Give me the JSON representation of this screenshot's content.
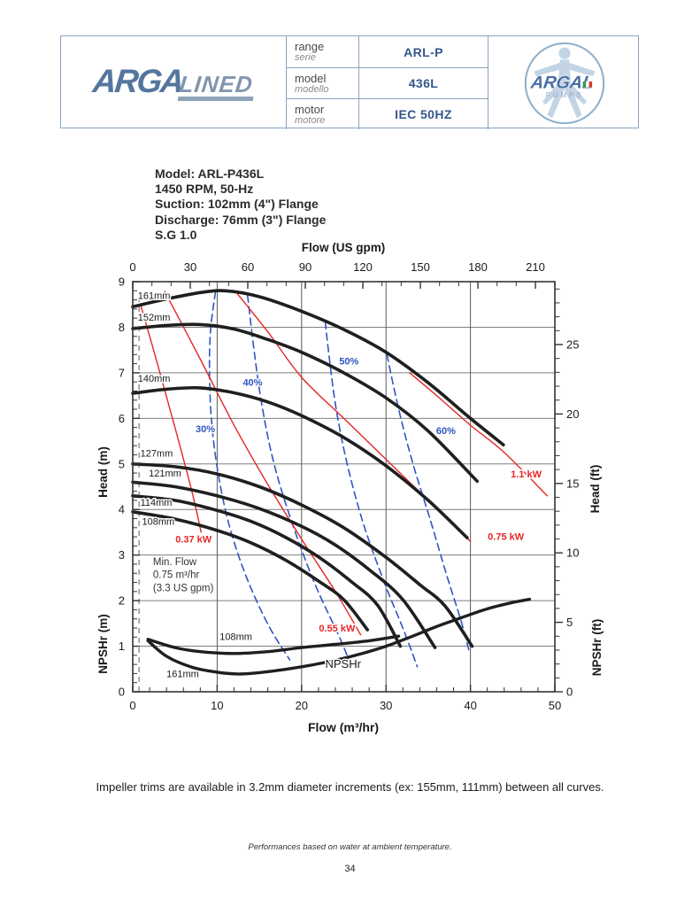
{
  "header": {
    "brand": {
      "main": "ARGA",
      "suffix": "LINED"
    },
    "rows": [
      {
        "label": "range",
        "sub": "serie",
        "value": "ARL-P"
      },
      {
        "label": "model",
        "sub": "modello",
        "value": "436L"
      },
      {
        "label": "motor",
        "sub": "motore",
        "value": "IEC 50HZ"
      }
    ],
    "badge": {
      "line1": "ARGAL",
      "line2": "PUMPS"
    }
  },
  "model_info": {
    "lines": [
      "Model: ARL-P436L",
      "1450 RPM, 50-Hz",
      "Suction: 102mm (4\") Flange",
      "Discharge: 76mm (3\") Flange",
      "S.G 1.0"
    ]
  },
  "notes": {
    "impeller": "Impeller trims are available in 3.2mm diameter increments (ex: 155mm, 111mm) between all curves.",
    "performance": "Performances based on water at ambient temperature."
  },
  "page_number": "34",
  "chart_data": {
    "type": "line",
    "title": "ARL-P436L pump performance curves, 1450 RPM 50 Hz",
    "axes": {
      "top": {
        "label": "Flow (US gpm)",
        "tick_values": [
          0,
          30,
          60,
          90,
          120,
          150,
          180,
          210
        ],
        "minor_step": 10,
        "gpm_per_m3hr": 4.4029
      },
      "bottom": {
        "label": "Flow (m³/hr)",
        "tick_values": [
          0,
          10,
          20,
          30,
          40,
          50
        ],
        "minor_step": 2,
        "max": 50
      },
      "left": {
        "label_upper": "Head (m)",
        "label_lower": "NPSHr (m)",
        "tick_values": [
          0,
          1,
          2,
          3,
          4,
          5,
          6,
          7,
          8,
          9
        ],
        "minor_step": 0.2,
        "max": 9
      },
      "right": {
        "label_upper": "Head (ft)",
        "label_lower": "NPSHr (ft)",
        "tick_values": [
          25,
          20,
          15,
          10,
          5,
          0
        ],
        "minor_step": 1,
        "ft_per_m": 3.2808
      }
    },
    "gridlines": {
      "horizontal_heads": [
        1,
        2,
        3,
        4,
        5,
        6,
        7,
        8
      ],
      "vertical_flows": [
        10,
        20,
        30,
        40
      ]
    },
    "min_flow": {
      "flow": 0.75,
      "label_lines": [
        "Min. Flow",
        "0.75 m³/hr",
        "(3.3 US gpm)"
      ],
      "label_pos": [
        2.4,
        2.78
      ]
    },
    "head_curves": [
      {
        "label": "161mm",
        "label_pos": [
          0.6,
          8.62
        ],
        "points": [
          [
            0,
            8.45
          ],
          [
            4,
            8.62
          ],
          [
            8,
            8.76
          ],
          [
            11,
            8.8
          ],
          [
            15,
            8.67
          ],
          [
            20,
            8.35
          ],
          [
            25,
            7.95
          ],
          [
            30,
            7.45
          ],
          [
            35,
            6.78
          ],
          [
            40,
            6.0
          ],
          [
            43.9,
            5.42
          ]
        ]
      },
      {
        "label": "152mm",
        "label_pos": [
          0.6,
          8.14
        ],
        "points": [
          [
            0,
            7.97
          ],
          [
            4,
            8.04
          ],
          [
            8,
            8.06
          ],
          [
            12,
            7.96
          ],
          [
            16,
            7.73
          ],
          [
            20,
            7.45
          ],
          [
            25,
            7.0
          ],
          [
            30,
            6.45
          ],
          [
            35,
            5.72
          ],
          [
            40.8,
            4.62
          ]
        ]
      },
      {
        "label": "140mm",
        "label_pos": [
          0.6,
          6.8
        ],
        "points": [
          [
            0,
            6.55
          ],
          [
            4,
            6.64
          ],
          [
            8,
            6.67
          ],
          [
            12,
            6.56
          ],
          [
            16,
            6.36
          ],
          [
            20,
            6.06
          ],
          [
            25,
            5.58
          ],
          [
            30,
            4.96
          ],
          [
            35,
            4.2
          ],
          [
            39.6,
            3.38
          ]
        ]
      },
      {
        "label": "127mm",
        "label_pos": [
          0.9,
          5.16
        ],
        "points": [
          [
            0,
            5.0
          ],
          [
            5,
            4.94
          ],
          [
            10,
            4.78
          ],
          [
            15,
            4.5
          ],
          [
            20,
            4.1
          ],
          [
            25,
            3.6
          ],
          [
            30,
            2.95
          ],
          [
            34,
            2.35
          ],
          [
            37,
            1.88
          ],
          [
            40.2,
            1.0
          ]
        ]
      },
      {
        "label": "121mm",
        "label_pos": [
          1.9,
          4.72
        ],
        "points": [
          [
            0,
            4.6
          ],
          [
            5,
            4.5
          ],
          [
            10,
            4.3
          ],
          [
            15,
            4.02
          ],
          [
            20,
            3.63
          ],
          [
            24,
            3.22
          ],
          [
            28,
            2.68
          ],
          [
            32,
            2.02
          ],
          [
            35.8,
            0.97
          ]
        ]
      },
      {
        "label": "114mm",
        "label_pos": [
          0.9,
          4.08
        ],
        "points": [
          [
            0,
            4.3
          ],
          [
            5,
            4.2
          ],
          [
            10,
            3.98
          ],
          [
            14,
            3.74
          ],
          [
            18,
            3.4
          ],
          [
            22,
            2.96
          ],
          [
            26,
            2.4
          ],
          [
            29,
            1.9
          ],
          [
            31.7,
            1.0
          ]
        ]
      },
      {
        "label": "108mm",
        "label_pos": [
          1.1,
          3.66
        ],
        "points": [
          [
            0,
            3.95
          ],
          [
            5,
            3.79
          ],
          [
            10,
            3.54
          ],
          [
            14,
            3.27
          ],
          [
            18,
            2.9
          ],
          [
            22,
            2.43
          ],
          [
            25,
            2.02
          ],
          [
            27.8,
            1.36
          ]
        ]
      }
    ],
    "npsh_curves": [
      {
        "label": "108mm",
        "label_pos": [
          10.3,
          1.14
        ],
        "points": [
          [
            1.8,
            1.15
          ],
          [
            5,
            0.97
          ],
          [
            8,
            0.88
          ],
          [
            12,
            0.84
          ],
          [
            16,
            0.88
          ],
          [
            20,
            0.97
          ],
          [
            24,
            1.04
          ],
          [
            28,
            1.12
          ],
          [
            31.5,
            1.22
          ]
        ]
      },
      {
        "label": "161mm",
        "label_pos": [
          4.0,
          0.32
        ],
        "points": [
          [
            1.8,
            1.12
          ],
          [
            4,
            0.78
          ],
          [
            7,
            0.54
          ],
          [
            10,
            0.43
          ],
          [
            12.5,
            0.39
          ],
          [
            15,
            0.42
          ],
          [
            18,
            0.49
          ],
          [
            21,
            0.58
          ],
          [
            24,
            0.69
          ],
          [
            27,
            0.83
          ],
          [
            30,
            1.0
          ],
          [
            33,
            1.21
          ],
          [
            36,
            1.43
          ],
          [
            39,
            1.63
          ],
          [
            42,
            1.82
          ],
          [
            45,
            1.96
          ],
          [
            47,
            2.03
          ]
        ]
      }
    ],
    "npsh_title": {
      "text": "NPSHr",
      "pos": [
        22.8,
        0.52
      ]
    },
    "efficiency_curves": [
      {
        "label": "30%",
        "label_pos": [
          8.6,
          5.7
        ],
        "points": [
          [
            9.8,
            8.78
          ],
          [
            9.2,
            7.9
          ],
          [
            9.1,
            6.9
          ],
          [
            9.4,
            5.8
          ],
          [
            10.2,
            4.7
          ],
          [
            11.5,
            3.6
          ],
          [
            13.5,
            2.5
          ],
          [
            16.1,
            1.45
          ],
          [
            18.6,
            0.7
          ]
        ]
      },
      {
        "label": "40%",
        "label_pos": [
          14.2,
          6.72
        ],
        "points": [
          [
            13.6,
            8.7
          ],
          [
            14.3,
            7.6
          ],
          [
            15.2,
            6.4
          ],
          [
            16.6,
            5.1
          ],
          [
            18.7,
            3.8
          ],
          [
            21.5,
            2.4
          ],
          [
            24.6,
            1.15
          ],
          [
            25.9,
            0.55
          ]
        ]
      },
      {
        "label": "50%",
        "label_pos": [
          25.6,
          7.18
        ],
        "points": [
          [
            22.8,
            8.12
          ],
          [
            23.3,
            7.3
          ],
          [
            24.1,
            6.2
          ],
          [
            25.4,
            5.0
          ],
          [
            27.3,
            3.7
          ],
          [
            29.9,
            2.35
          ],
          [
            32.1,
            1.35
          ],
          [
            33.7,
            0.55
          ]
        ]
      },
      {
        "label": "60%",
        "label_pos": [
          37.1,
          5.66
        ],
        "points": [
          [
            30.1,
            7.4
          ],
          [
            31.5,
            6.2
          ],
          [
            33.2,
            5.0
          ],
          [
            35.2,
            3.8
          ],
          [
            37.2,
            2.55
          ],
          [
            38.9,
            1.55
          ],
          [
            39.9,
            0.85
          ]
        ]
      }
    ],
    "power_lines": [
      {
        "label": "0.37 kW",
        "label_pos": [
          7.2,
          3.28
        ],
        "points": [
          [
            1.0,
            8.45
          ],
          [
            3,
            7.15
          ],
          [
            5,
            5.8
          ],
          [
            7,
            4.4
          ],
          [
            8.1,
            3.5
          ]
        ]
      },
      {
        "label": "0.55 kW",
        "label_pos": [
          24.2,
          1.32
        ],
        "points": [
          [
            3.8,
            8.78
          ],
          [
            8,
            7.3
          ],
          [
            12,
            5.85
          ],
          [
            16,
            4.55
          ],
          [
            20,
            3.35
          ],
          [
            24,
            2.2
          ],
          [
            27,
            1.25
          ]
        ]
      },
      {
        "label": "0.75 kW",
        "label_pos": [
          44.2,
          3.33
        ],
        "points": [
          [
            12.2,
            8.78
          ],
          [
            16,
            7.9
          ],
          [
            20,
            6.9
          ],
          [
            25,
            6.0
          ],
          [
            30,
            5.1
          ],
          [
            35,
            4.2
          ],
          [
            40,
            3.3
          ]
        ]
      },
      {
        "label": "1.1 kW",
        "label_pos": [
          46.6,
          4.7
        ],
        "points": [
          [
            32.8,
            7.0
          ],
          [
            36,
            6.5
          ],
          [
            40,
            5.85
          ],
          [
            44,
            5.25
          ],
          [
            49.1,
            4.3
          ]
        ]
      }
    ],
    "colors": {
      "curve": "#1f1f1f",
      "efficiency": "#2f55c2",
      "power": "#e62626",
      "grid": "#7f7f7f",
      "grid_dark": "#5a5a5a",
      "frame": "#333333",
      "text": "#1a1a1a"
    },
    "legend_position": "none",
    "grid": true
  }
}
